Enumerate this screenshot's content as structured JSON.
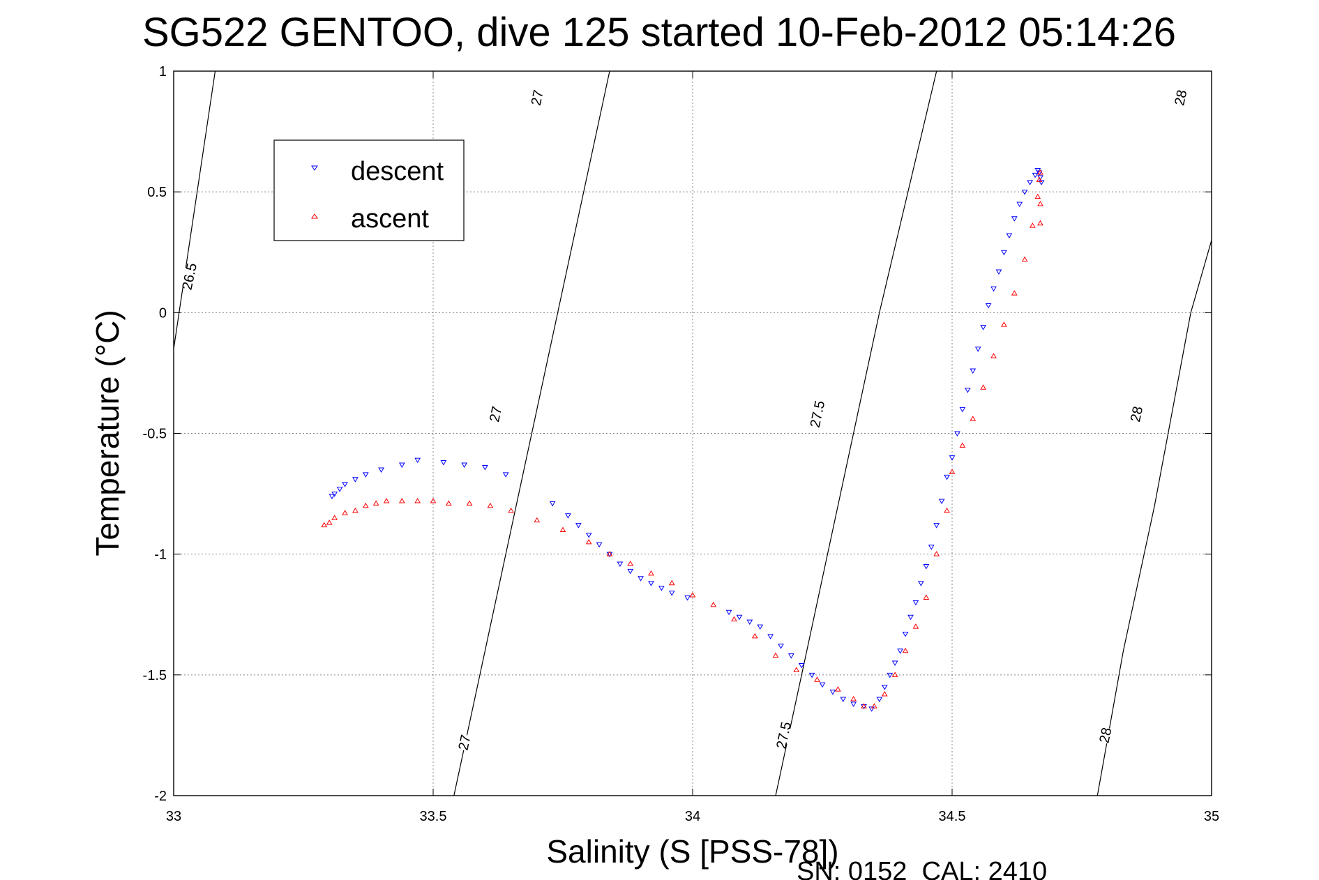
{
  "chart_data": {
    "type": "scatter",
    "title": "SG522 GENTOO, dive 125 started 10-Feb-2012 05:14:26",
    "xlabel": "Salinity (S [PSS-78])",
    "ylabel": "Temperature (°C)",
    "xlim": [
      33,
      35
    ],
    "ylim": [
      -2,
      1
    ],
    "xticks": [
      33,
      33.5,
      34,
      34.5,
      35
    ],
    "yticks": [
      -2,
      -1.5,
      -1,
      -0.5,
      0,
      0.5,
      1
    ],
    "xtick_labels": [
      "33",
      "33.5",
      "34",
      "34.5",
      "35"
    ],
    "ytick_labels": [
      "-2",
      "-1.5",
      "-1",
      "-0.5",
      "0",
      "0.5",
      "1"
    ],
    "grid": true,
    "legend_position": "top-left",
    "footer": "SN: 0152  CAL: 2410",
    "series": [
      {
        "name": "descent",
        "marker": "triangle-down",
        "color": "#0000ff",
        "x": [
          33.305,
          33.31,
          33.32,
          33.33,
          33.35,
          33.37,
          33.4,
          33.44,
          33.47,
          33.52,
          33.56,
          33.6,
          33.64,
          33.73,
          33.76,
          33.78,
          33.8,
          33.82,
          33.84,
          33.86,
          33.88,
          33.9,
          33.92,
          33.94,
          33.96,
          33.99,
          34.07,
          34.09,
          34.11,
          34.13,
          34.15,
          34.17,
          34.19,
          34.21,
          34.23,
          34.25,
          34.27,
          34.29,
          34.31,
          34.33,
          34.345,
          34.36,
          34.37,
          34.38,
          34.39,
          34.4,
          34.41,
          34.42,
          34.43,
          34.44,
          34.45,
          34.46,
          34.47,
          34.48,
          34.49,
          34.5,
          34.51,
          34.52,
          34.53,
          34.54,
          34.55,
          34.56,
          34.57,
          34.58,
          34.59,
          34.6,
          34.61,
          34.62,
          34.63,
          34.64,
          34.65,
          34.66,
          34.665,
          34.668,
          34.67,
          34.672
        ],
        "y": [
          -0.76,
          -0.75,
          -0.73,
          -0.71,
          -0.69,
          -0.67,
          -0.65,
          -0.63,
          -0.61,
          -0.62,
          -0.63,
          -0.64,
          -0.67,
          -0.79,
          -0.84,
          -0.88,
          -0.92,
          -0.96,
          -1.0,
          -1.04,
          -1.07,
          -1.1,
          -1.12,
          -1.14,
          -1.16,
          -1.18,
          -1.24,
          -1.26,
          -1.28,
          -1.3,
          -1.34,
          -1.38,
          -1.42,
          -1.46,
          -1.5,
          -1.54,
          -1.57,
          -1.6,
          -1.62,
          -1.63,
          -1.64,
          -1.6,
          -1.55,
          -1.5,
          -1.45,
          -1.4,
          -1.33,
          -1.26,
          -1.2,
          -1.12,
          -1.05,
          -0.97,
          -0.88,
          -0.78,
          -0.68,
          -0.6,
          -0.5,
          -0.4,
          -0.32,
          -0.24,
          -0.15,
          -0.06,
          0.03,
          0.1,
          0.17,
          0.25,
          0.32,
          0.39,
          0.45,
          0.5,
          0.54,
          0.57,
          0.59,
          0.58,
          0.56,
          0.54
        ]
      },
      {
        "name": "ascent",
        "marker": "triangle-up",
        "color": "#ff0000",
        "x": [
          33.29,
          33.3,
          33.31,
          33.33,
          33.35,
          33.37,
          33.39,
          33.41,
          33.44,
          33.47,
          33.5,
          33.53,
          33.57,
          33.61,
          33.65,
          33.7,
          33.75,
          33.8,
          33.84,
          33.88,
          33.92,
          33.96,
          34.0,
          34.04,
          34.08,
          34.12,
          34.16,
          34.2,
          34.24,
          34.28,
          34.31,
          34.33,
          34.35,
          34.37,
          34.39,
          34.41,
          34.43,
          34.45,
          34.47,
          34.49,
          34.5,
          34.52,
          34.54,
          34.56,
          34.58,
          34.6,
          34.62,
          34.64,
          34.655,
          34.665,
          34.668,
          34.67,
          34.67,
          34.67
        ],
        "y": [
          -0.88,
          -0.87,
          -0.85,
          -0.83,
          -0.82,
          -0.8,
          -0.79,
          -0.78,
          -0.78,
          -0.78,
          -0.78,
          -0.79,
          -0.79,
          -0.8,
          -0.82,
          -0.86,
          -0.9,
          -0.95,
          -1.0,
          -1.04,
          -1.08,
          -1.12,
          -1.17,
          -1.21,
          -1.27,
          -1.34,
          -1.42,
          -1.48,
          -1.52,
          -1.56,
          -1.6,
          -1.63,
          -1.63,
          -1.58,
          -1.5,
          -1.4,
          -1.3,
          -1.18,
          -1.0,
          -0.82,
          -0.66,
          -0.55,
          -0.44,
          -0.31,
          -0.18,
          -0.05,
          0.08,
          0.22,
          0.36,
          0.48,
          0.55,
          0.58,
          0.45,
          0.37
        ]
      }
    ],
    "contours": [
      {
        "label": "26.5",
        "points": [
          [
            33.0,
            -0.15
          ],
          [
            33.08,
            1.0
          ]
        ]
      },
      {
        "label": "27",
        "points": [
          [
            33.54,
            -2.0
          ],
          [
            33.6,
            -1.4
          ],
          [
            33.66,
            -0.8
          ],
          [
            33.74,
            0.0
          ],
          [
            33.84,
            1.0
          ]
        ]
      },
      {
        "label": "27.5",
        "points": [
          [
            34.16,
            -2.0
          ],
          [
            34.22,
            -1.4
          ],
          [
            34.28,
            -0.8
          ],
          [
            34.36,
            0.0
          ],
          [
            34.47,
            1.0
          ]
        ]
      },
      {
        "label": "28",
        "points": [
          [
            34.78,
            -2.0
          ],
          [
            34.83,
            -1.4
          ],
          [
            34.89,
            -0.8
          ],
          [
            34.96,
            0.0
          ],
          [
            35.0,
            0.3
          ]
        ]
      }
    ],
    "contour_labels": [
      {
        "text": "26.5",
        "x": 33.03,
        "y": 0.15
      },
      {
        "text": "27",
        "x": 33.56,
        "y": -1.78
      },
      {
        "text": "27",
        "x": 33.62,
        "y": -0.42
      },
      {
        "text": "27",
        "x": 33.7,
        "y": 0.89
      },
      {
        "text": "27.5",
        "x": 34.175,
        "y": -1.75
      },
      {
        "text": "27.5",
        "x": 34.24,
        "y": -0.42
      },
      {
        "text": "28",
        "x": 34.795,
        "y": -1.75
      },
      {
        "text": "28",
        "x": 34.855,
        "y": -0.42
      },
      {
        "text": "28",
        "x": 34.94,
        "y": 0.89
      }
    ]
  }
}
